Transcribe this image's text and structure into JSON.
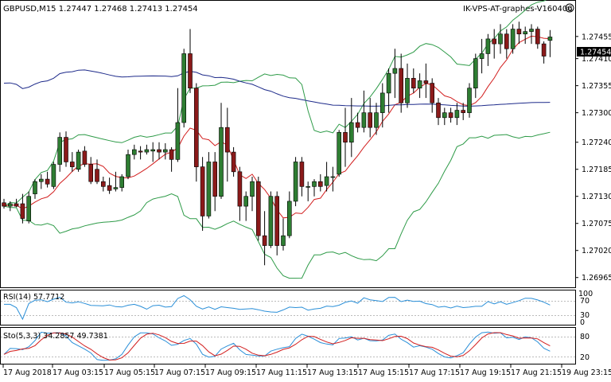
{
  "window": {
    "symbol_header": "GBPUSD,M15  1.27447 1.27468 1.27413 1.27454",
    "expert_label": "IK-VPS-AT-graphes-V160406",
    "smiley_icon": "smiley-icon"
  },
  "colors": {
    "bull": "#2e7d32",
    "bear": "#8b1a1a",
    "bands": "#2e9b48",
    "ma_red": "#d21e1e",
    "ma_blue": "#1d2a8a",
    "rsi": "#2a8fd8",
    "sto_main": "#2a8fd8",
    "sto_signal": "#d21e1e",
    "price_tag_bg": "#000000",
    "price_tag_fg": "#ffffff"
  },
  "price_axis": {
    "ticks": [
      "1.27455",
      "1.27410",
      "1.27355",
      "1.27300",
      "1.27240",
      "1.27185",
      "1.27130",
      "1.27075",
      "1.27020",
      "1.26965"
    ],
    "current_price": "1.27454"
  },
  "rsi_panel": {
    "label": "RSI(14) 57.7712",
    "value": 57.7712,
    "ticks": [
      "100",
      "70",
      "30",
      "0"
    ]
  },
  "sto_panel": {
    "label": "Sto(5,3,3) 34.2857 49.7381",
    "main": 34.2857,
    "signal": 49.7381,
    "ticks": [
      "80",
      "20"
    ]
  },
  "time_axis": {
    "labels": [
      "17 Aug 2018",
      "17 Aug 03:15",
      "17 Aug 05:15",
      "17 Aug 07:15",
      "17 Aug 09:15",
      "17 Aug 11:15",
      "17 Aug 13:15",
      "17 Aug 15:15",
      "17 Aug 17:15",
      "17 Aug 19:15",
      "17 Aug 21:15",
      "19 Aug 23:15"
    ]
  },
  "chart_data": {
    "type": "candlestick",
    "symbol": "GBPUSD",
    "timeframe": "M15",
    "ylim": [
      1.2695,
      1.275
    ],
    "candles": [
      [
        1.27117,
        1.27125,
        1.27105,
        1.2711
      ],
      [
        1.2711,
        1.2712,
        1.271,
        1.27115
      ],
      [
        1.27115,
        1.27125,
        1.27108,
        1.2711
      ],
      [
        1.27115,
        1.27135,
        1.27075,
        1.27085
      ],
      [
        1.2708,
        1.2714,
        1.27075,
        1.2713
      ],
      [
        1.27135,
        1.27165,
        1.27125,
        1.2716
      ],
      [
        1.2716,
        1.27175,
        1.27145,
        1.27165
      ],
      [
        1.27165,
        1.2718,
        1.27148,
        1.27155
      ],
      [
        1.2715,
        1.272,
        1.27145,
        1.27195
      ],
      [
        1.27195,
        1.2726,
        1.2718,
        1.2725
      ],
      [
        1.2725,
        1.27262,
        1.2719,
        1.272
      ],
      [
        1.272,
        1.2722,
        1.2718,
        1.2719
      ],
      [
        1.27185,
        1.27225,
        1.2718,
        1.2722
      ],
      [
        1.27222,
        1.27232,
        1.2719,
        1.27195
      ],
      [
        1.27195,
        1.2721,
        1.27155,
        1.2716
      ],
      [
        1.27185,
        1.27205,
        1.27155,
        1.2716
      ],
      [
        1.2716,
        1.2717,
        1.2714,
        1.2715
      ],
      [
        1.27152,
        1.27168,
        1.27135,
        1.27142
      ],
      [
        1.27145,
        1.2718,
        1.2714,
        1.27148
      ],
      [
        1.27148,
        1.27175,
        1.2714,
        1.2717
      ],
      [
        1.2717,
        1.27225,
        1.27165,
        1.27215
      ],
      [
        1.27215,
        1.27235,
        1.27205,
        1.27225
      ],
      [
        1.27222,
        1.27232,
        1.27205,
        1.2722
      ],
      [
        1.2722,
        1.27235,
        1.27215,
        1.27225
      ],
      [
        1.27222,
        1.2724,
        1.272,
        1.27225
      ],
      [
        1.27225,
        1.2724,
        1.27205,
        1.2722
      ],
      [
        1.2722,
        1.27238,
        1.27205,
        1.27225
      ],
      [
        1.27225,
        1.2723,
        1.2718,
        1.27205
      ],
      [
        1.27205,
        1.2735,
        1.272,
        1.2728
      ],
      [
        1.2728,
        1.2743,
        1.2727,
        1.2742
      ],
      [
        1.2742,
        1.2747,
        1.2734,
        1.2735
      ],
      [
        1.2735,
        1.2736,
        1.2716,
        1.2719
      ],
      [
        1.2719,
        1.2721,
        1.2706,
        1.2709
      ],
      [
        1.2709,
        1.2722,
        1.27085,
        1.272
      ],
      [
        1.272,
        1.2722,
        1.271,
        1.2713
      ],
      [
        1.2713,
        1.2732,
        1.27125,
        1.2727
      ],
      [
        1.2727,
        1.2731,
        1.2716,
        1.2722
      ],
      [
        1.2722,
        1.2723,
        1.2717,
        1.2718
      ],
      [
        1.2718,
        1.2719,
        1.2708,
        1.2711
      ],
      [
        1.2711,
        1.2714,
        1.2708,
        1.2713
      ],
      [
        1.2713,
        1.2717,
        1.271,
        1.2716
      ],
      [
        1.2716,
        1.2717,
        1.2704,
        1.2705
      ],
      [
        1.2705,
        1.271,
        1.2699,
        1.2703
      ],
      [
        1.2703,
        1.2714,
        1.27025,
        1.2713
      ],
      [
        1.2713,
        1.2714,
        1.2701,
        1.2703
      ],
      [
        1.2703,
        1.27085,
        1.2702,
        1.2705
      ],
      [
        1.2705,
        1.2714,
        1.27045,
        1.2712
      ],
      [
        1.2712,
        1.2721,
        1.2711,
        1.272
      ],
      [
        1.272,
        1.2721,
        1.2713,
        1.2715
      ],
      [
        1.2715,
        1.2716,
        1.2712,
        1.2715
      ],
      [
        1.2715,
        1.27165,
        1.2713,
        1.2716
      ],
      [
        1.2716,
        1.27175,
        1.2714,
        1.2715
      ],
      [
        1.27152,
        1.272,
        1.2714,
        1.2717
      ],
      [
        1.2717,
        1.2719,
        1.2714,
        1.2717
      ],
      [
        1.27175,
        1.27265,
        1.2717,
        1.2726
      ],
      [
        1.2726,
        1.2731,
        1.2719,
        1.2724
      ],
      [
        1.2724,
        1.2733,
        1.2721,
        1.2728
      ],
      [
        1.2728,
        1.273,
        1.2726,
        1.2727
      ],
      [
        1.2727,
        1.27345,
        1.2726,
        1.273
      ],
      [
        1.273,
        1.2733,
        1.2725,
        1.2727
      ],
      [
        1.2727,
        1.2732,
        1.27255,
        1.273
      ],
      [
        1.273,
        1.2736,
        1.2727,
        1.2734
      ],
      [
        1.2734,
        1.2739,
        1.273,
        1.2738
      ],
      [
        1.2738,
        1.2743,
        1.2733,
        1.2739
      ],
      [
        1.2739,
        1.2742,
        1.273,
        1.2732
      ],
      [
        1.2732,
        1.274,
        1.2731,
        1.2737
      ],
      [
        1.2737,
        1.2739,
        1.2734,
        1.2735
      ],
      [
        1.2735,
        1.2738,
        1.2733,
        1.27365
      ],
      [
        1.27365,
        1.274,
        1.2733,
        1.2736
      ],
      [
        1.2736,
        1.2737,
        1.273,
        1.2732
      ],
      [
        1.2732,
        1.2733,
        1.27275,
        1.2729
      ],
      [
        1.2729,
        1.2731,
        1.27275,
        1.273
      ],
      [
        1.273,
        1.2731,
        1.2728,
        1.2729
      ],
      [
        1.2729,
        1.2732,
        1.27275,
        1.27305
      ],
      [
        1.27305,
        1.2732,
        1.27285,
        1.273
      ],
      [
        1.273,
        1.2736,
        1.2729,
        1.2735
      ],
      [
        1.2735,
        1.2742,
        1.2733,
        1.2741
      ],
      [
        1.2741,
        1.2745,
        1.2738,
        1.2742
      ],
      [
        1.2742,
        1.2746,
        1.27395,
        1.2745
      ],
      [
        1.2745,
        1.2747,
        1.2741,
        1.2744
      ],
      [
        1.2744,
        1.2748,
        1.2742,
        1.2746
      ],
      [
        1.2746,
        1.2747,
        1.2741,
        1.2743
      ],
      [
        1.2743,
        1.2748,
        1.2742,
        1.2747
      ],
      [
        1.2747,
        1.27485,
        1.2744,
        1.2746
      ],
      [
        1.2746,
        1.27475,
        1.2744,
        1.27465
      ],
      [
        1.27465,
        1.2748,
        1.2744,
        1.2747
      ],
      [
        1.2747,
        1.27475,
        1.2743,
        1.2744
      ],
      [
        1.2744,
        1.27445,
        1.274,
        1.27415
      ],
      [
        1.27447,
        1.27468,
        1.27413,
        1.27454
      ]
    ],
    "indicators": [
      "Bollinger Bands",
      "Moving Average (red)",
      "Moving Average (blue)",
      "RSI(14)",
      "Stochastic(5,3,3)"
    ]
  }
}
